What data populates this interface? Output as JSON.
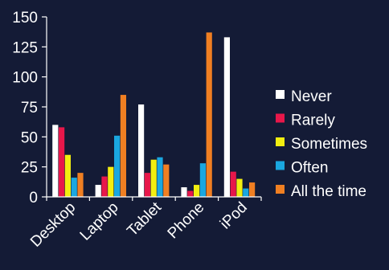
{
  "chart_data": {
    "type": "bar",
    "categories": [
      "Desktop",
      "Laptop",
      "Tablet",
      "Phone",
      "iPod"
    ],
    "series": [
      {
        "name": "Never",
        "color": "#ffffff",
        "values": [
          60,
          10,
          77,
          8,
          133
        ]
      },
      {
        "name": "Rarely",
        "color": "#e8174a",
        "values": [
          58,
          17,
          20,
          5,
          21
        ]
      },
      {
        "name": "Sometimes",
        "color": "#f2ee10",
        "values": [
          35,
          25,
          31,
          10,
          15
        ]
      },
      {
        "name": "Often",
        "color": "#1aa7e0",
        "values": [
          16,
          51,
          33,
          28,
          7
        ]
      },
      {
        "name": "All the time",
        "color": "#f07f22",
        "values": [
          20,
          85,
          27,
          137,
          12
        ]
      }
    ],
    "ylim": [
      0,
      150
    ],
    "yticks": [
      0,
      25,
      50,
      75,
      100,
      125,
      150
    ],
    "grid": false,
    "legend": "right",
    "title": "",
    "xlabel": "",
    "ylabel": ""
  }
}
